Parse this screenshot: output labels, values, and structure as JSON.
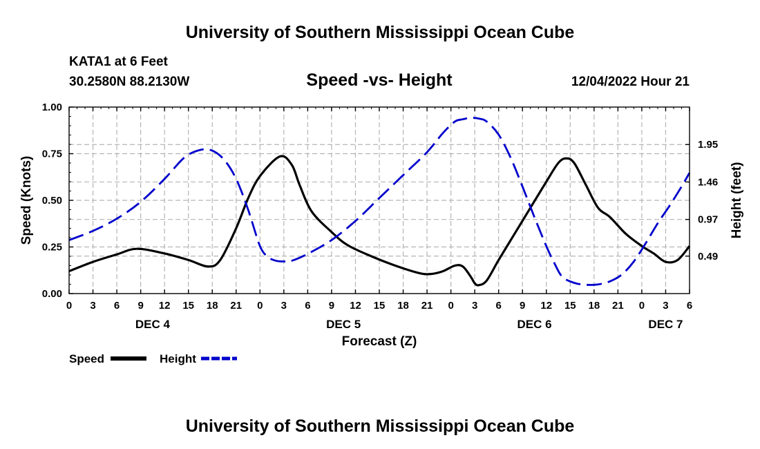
{
  "page": {
    "top_title": "University of Southern Mississippi Ocean Cube",
    "bottom_title": "University of Southern Mississippi Ocean Cube",
    "station": "KATA1 at 6 Feet",
    "coordinates": "30.2580N  88.2130W",
    "datetime": "12/04/2022 Hour 21"
  },
  "chart_data": {
    "type": "line",
    "title": "Speed -vs- Height",
    "xlabel": "Forecast (Z)",
    "ylabel_left": "Speed (Knots)",
    "ylabel_right": "Height (feet)",
    "x_hours_range": [
      0,
      78
    ],
    "x_tick_step_hours": 3,
    "x_tick_labels": [
      "0",
      "3",
      "6",
      "9",
      "12",
      "15",
      "18",
      "21",
      "0",
      "3",
      "6",
      "9",
      "12",
      "15",
      "18",
      "21",
      "0",
      "3",
      "6",
      "9",
      "12",
      "15",
      "18",
      "21",
      "0",
      "3",
      "6"
    ],
    "day_labels": [
      {
        "label": "DEC 4",
        "hour": 10.5
      },
      {
        "label": "DEC 5",
        "hour": 34.5
      },
      {
        "label": "DEC 6",
        "hour": 58.5
      },
      {
        "label": "DEC 7",
        "hour": 75
      }
    ],
    "ylim_left": [
      0,
      1.0
    ],
    "yticks_left": [
      0.0,
      0.25,
      0.5,
      0.75,
      1.0
    ],
    "ytick_labels_left": [
      "0.00",
      "0.25",
      "0.50",
      "0.75",
      "1.00"
    ],
    "ylim_right": [
      0,
      2.44
    ],
    "yticks_right": [
      0.49,
      0.97,
      1.46,
      1.95
    ],
    "ytick_labels_right": [
      "0.49",
      "0.97",
      "1.46",
      "1.95"
    ],
    "grid": true,
    "legend": [
      {
        "name": "Speed",
        "color": "#000000",
        "style": "solid"
      },
      {
        "name": "Height",
        "color": "#0000cc",
        "style": "dashed"
      }
    ],
    "series": [
      {
        "name": "Speed",
        "axis": "left",
        "color": "#000000",
        "style": "solid",
        "points": [
          [
            0,
            0.12
          ],
          [
            3,
            0.17
          ],
          [
            6,
            0.21
          ],
          [
            8.5,
            0.24
          ],
          [
            12,
            0.215
          ],
          [
            15,
            0.18
          ],
          [
            17.5,
            0.145
          ],
          [
            19,
            0.18
          ],
          [
            21,
            0.35
          ],
          [
            22.5,
            0.51
          ],
          [
            24,
            0.63
          ],
          [
            26.5,
            0.735
          ],
          [
            28,
            0.69
          ],
          [
            29,
            0.58
          ],
          [
            30.5,
            0.44
          ],
          [
            33,
            0.33
          ],
          [
            35,
            0.26
          ],
          [
            38,
            0.2
          ],
          [
            41,
            0.15
          ],
          [
            44,
            0.11
          ],
          [
            45.5,
            0.105
          ],
          [
            47,
            0.12
          ],
          [
            48.5,
            0.15
          ],
          [
            49.5,
            0.145
          ],
          [
            50.5,
            0.09
          ],
          [
            51,
            0.055
          ],
          [
            51.5,
            0.045
          ],
          [
            52.5,
            0.07
          ],
          [
            54,
            0.18
          ],
          [
            56,
            0.32
          ],
          [
            58,
            0.46
          ],
          [
            60,
            0.6
          ],
          [
            61.5,
            0.7
          ],
          [
            62.5,
            0.725
          ],
          [
            63.5,
            0.7
          ],
          [
            65,
            0.58
          ],
          [
            66.5,
            0.46
          ],
          [
            68,
            0.41
          ],
          [
            70,
            0.32
          ],
          [
            72,
            0.255
          ],
          [
            73.5,
            0.215
          ],
          [
            75,
            0.17
          ],
          [
            76.5,
            0.18
          ],
          [
            78,
            0.255
          ]
        ]
      },
      {
        "name": "Height",
        "axis": "right",
        "color": "#0000cc",
        "style": "dashed",
        "points": [
          [
            0,
            0.7
          ],
          [
            3,
            0.82
          ],
          [
            6,
            0.98
          ],
          [
            9,
            1.2
          ],
          [
            12,
            1.5
          ],
          [
            14.5,
            1.78
          ],
          [
            16.5,
            1.88
          ],
          [
            18,
            1.87
          ],
          [
            19.5,
            1.75
          ],
          [
            21,
            1.5
          ],
          [
            22.5,
            1.1
          ],
          [
            24,
            0.62
          ],
          [
            25,
            0.48
          ],
          [
            26,
            0.43
          ],
          [
            27,
            0.42
          ],
          [
            28,
            0.43
          ],
          [
            30,
            0.52
          ],
          [
            33,
            0.7
          ],
          [
            36,
            0.95
          ],
          [
            39,
            1.25
          ],
          [
            42,
            1.55
          ],
          [
            45,
            1.85
          ],
          [
            47,
            2.1
          ],
          [
            48.5,
            2.25
          ],
          [
            49.5,
            2.28
          ],
          [
            50.5,
            2.3
          ],
          [
            51.5,
            2.29
          ],
          [
            52.5,
            2.25
          ],
          [
            54,
            2.08
          ],
          [
            55.5,
            1.78
          ],
          [
            57,
            1.4
          ],
          [
            58.5,
            1.0
          ],
          [
            60,
            0.62
          ],
          [
            61,
            0.4
          ],
          [
            62,
            0.22
          ],
          [
            63.5,
            0.14
          ],
          [
            65,
            0.115
          ],
          [
            66.5,
            0.12
          ],
          [
            68,
            0.16
          ],
          [
            69.5,
            0.25
          ],
          [
            71,
            0.42
          ],
          [
            72.5,
            0.66
          ],
          [
            74,
            0.92
          ],
          [
            75.5,
            1.15
          ],
          [
            77,
            1.4
          ],
          [
            78,
            1.58
          ]
        ]
      }
    ]
  }
}
